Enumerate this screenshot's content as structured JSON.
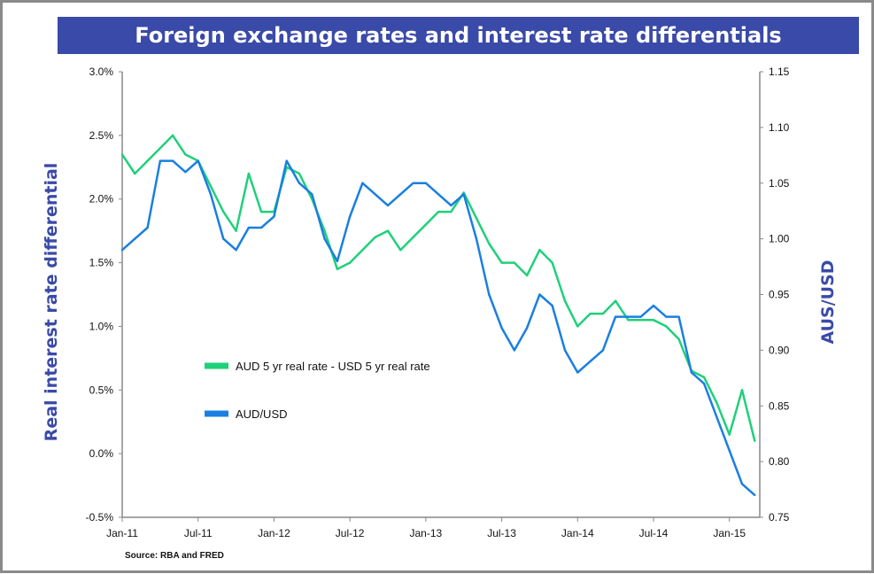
{
  "chart_data": {
    "type": "line",
    "title": "Foreign exchange rates and interest rate differentials",
    "ylabel": "Real interest rate differential",
    "y2label": "AUS/USD",
    "ylim": [
      -0.5,
      3.0
    ],
    "y2lim": [
      0.75,
      1.15
    ],
    "yticks": [
      "3.0%",
      "2.5%",
      "2.0%",
      "1.5%",
      "1.0%",
      "0.5%",
      "0.0%",
      "-0.5%"
    ],
    "y2ticks": [
      "1.15",
      "1.10",
      "1.05",
      "1.00",
      "0.95",
      "0.90",
      "0.85",
      "0.80",
      "0.75"
    ],
    "xticks": [
      "Jan-11",
      "Jul-11",
      "Jan-12",
      "Jul-12",
      "Jan-13",
      "Jul-13",
      "Jan-14",
      "Jul-14",
      "Jan-15"
    ],
    "source": "Source: RBA and FRED",
    "legend_placement": "center-left",
    "grid": false,
    "x": [
      "2011-01",
      "2011-02",
      "2011-03",
      "2011-04",
      "2011-05",
      "2011-06",
      "2011-07",
      "2011-08",
      "2011-09",
      "2011-10",
      "2011-11",
      "2011-12",
      "2012-01",
      "2012-02",
      "2012-03",
      "2012-04",
      "2012-05",
      "2012-06",
      "2012-07",
      "2012-08",
      "2012-09",
      "2012-10",
      "2012-11",
      "2012-12",
      "2013-01",
      "2013-02",
      "2013-03",
      "2013-04",
      "2013-05",
      "2013-06",
      "2013-07",
      "2013-08",
      "2013-09",
      "2013-10",
      "2013-11",
      "2013-12",
      "2014-01",
      "2014-02",
      "2014-03",
      "2014-04",
      "2014-05",
      "2014-06",
      "2014-07",
      "2014-08",
      "2014-09",
      "2014-10",
      "2014-11",
      "2014-12",
      "2015-01",
      "2015-02",
      "2015-03"
    ],
    "series": [
      {
        "name": "AUD 5 yr real rate - USD 5 yr real rate",
        "axis": "left",
        "color": "#1fd07a",
        "values": [
          2.35,
          2.2,
          2.3,
          2.4,
          2.5,
          2.35,
          2.3,
          2.1,
          1.9,
          1.75,
          2.2,
          1.9,
          1.9,
          2.25,
          2.2,
          2.0,
          1.75,
          1.45,
          1.5,
          1.6,
          1.7,
          1.75,
          1.6,
          1.7,
          1.8,
          1.9,
          1.9,
          2.05,
          1.85,
          1.65,
          1.5,
          1.5,
          1.4,
          1.6,
          1.5,
          1.2,
          1.0,
          1.1,
          1.1,
          1.2,
          1.05,
          1.05,
          1.05,
          1.0,
          0.9,
          0.65,
          0.6,
          0.4,
          0.15,
          0.5,
          0.1
        ]
      },
      {
        "name": "AUD/USD",
        "axis": "right",
        "color": "#1a7fe0",
        "values": [
          0.99,
          1.0,
          1.01,
          1.07,
          1.07,
          1.06,
          1.07,
          1.04,
          1.0,
          0.99,
          1.01,
          1.01,
          1.02,
          1.07,
          1.05,
          1.04,
          1.0,
          0.98,
          1.02,
          1.05,
          1.04,
          1.03,
          1.04,
          1.05,
          1.05,
          1.04,
          1.03,
          1.04,
          1.0,
          0.95,
          0.92,
          0.9,
          0.92,
          0.95,
          0.94,
          0.9,
          0.88,
          0.89,
          0.9,
          0.93,
          0.93,
          0.93,
          0.94,
          0.93,
          0.93,
          0.88,
          0.87,
          0.84,
          0.81,
          0.78,
          0.77
        ]
      }
    ]
  }
}
